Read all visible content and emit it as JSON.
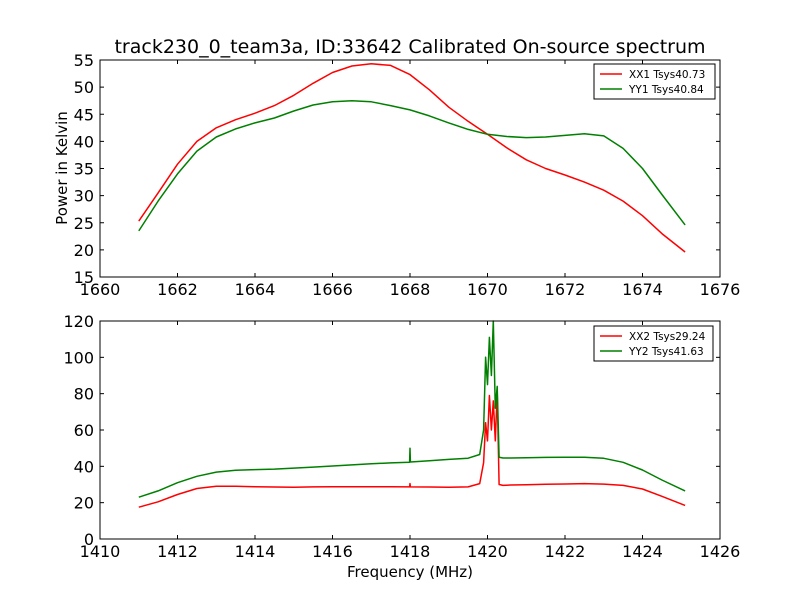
{
  "title": "track230_0_team3a, ID:33642 Calibrated On-source spectrum",
  "xlabel": "Frequency (MHz)",
  "ylabel": "Power in Kelvin",
  "colors": {
    "red": "#ff0000",
    "green": "#008000"
  },
  "chart_data": [
    {
      "type": "line",
      "title": "track230_0_team3a, ID:33642 Calibrated On-source spectrum",
      "ylabel": "Power in Kelvin",
      "xlabel": "",
      "xlim": [
        1660,
        1676
      ],
      "ylim": [
        15,
        55
      ],
      "xticks": [
        1660,
        1662,
        1664,
        1666,
        1668,
        1670,
        1672,
        1674,
        1676
      ],
      "yticks": [
        15,
        20,
        25,
        30,
        35,
        40,
        45,
        50,
        55
      ],
      "legend_position": "top-right",
      "grid": false,
      "series": [
        {
          "name": "XX1 Tsys40.73",
          "color": "#ff0000",
          "x": [
            1661.0,
            1661.5,
            1662.0,
            1662.5,
            1663.0,
            1663.5,
            1664.0,
            1664.5,
            1665.0,
            1665.5,
            1666.0,
            1666.5,
            1667.0,
            1667.5,
            1668.0,
            1668.5,
            1669.0,
            1669.5,
            1670.0,
            1670.5,
            1671.0,
            1671.5,
            1672.0,
            1672.5,
            1673.0,
            1673.5,
            1674.0,
            1674.5,
            1675.1
          ],
          "y": [
            25.3,
            30.5,
            35.8,
            40.0,
            42.5,
            44.0,
            45.2,
            46.6,
            48.5,
            50.7,
            52.7,
            53.9,
            54.3,
            54.0,
            52.3,
            49.5,
            46.3,
            43.7,
            41.3,
            38.8,
            36.6,
            35.0,
            33.8,
            32.5,
            31.0,
            29.0,
            26.3,
            23.0,
            19.6
          ]
        },
        {
          "name": "YY1 Tsys40.84",
          "color": "#008000",
          "x": [
            1661.0,
            1661.5,
            1662.0,
            1662.5,
            1663.0,
            1663.5,
            1664.0,
            1664.5,
            1665.0,
            1665.5,
            1666.0,
            1666.5,
            1667.0,
            1667.5,
            1668.0,
            1668.5,
            1669.0,
            1669.5,
            1670.0,
            1670.5,
            1671.0,
            1671.5,
            1672.0,
            1672.5,
            1673.0,
            1673.5,
            1674.0,
            1674.5,
            1675.1
          ],
          "y": [
            23.5,
            29.0,
            34.0,
            38.2,
            40.8,
            42.3,
            43.4,
            44.3,
            45.6,
            46.7,
            47.3,
            47.5,
            47.3,
            46.6,
            45.8,
            44.7,
            43.4,
            42.2,
            41.3,
            40.9,
            40.7,
            40.8,
            41.1,
            41.4,
            41.0,
            38.7,
            35.0,
            30.2,
            24.6
          ]
        }
      ]
    },
    {
      "type": "line",
      "title": "",
      "xlabel": "Frequency (MHz)",
      "ylabel": "",
      "xlim": [
        1410,
        1426
      ],
      "ylim": [
        0,
        120
      ],
      "xticks": [
        1410,
        1412,
        1414,
        1416,
        1418,
        1420,
        1422,
        1424,
        1426
      ],
      "yticks": [
        0,
        20,
        40,
        60,
        80,
        100,
        120
      ],
      "legend_position": "top-right",
      "grid": false,
      "series": [
        {
          "name": "XX2 Tsys29.24",
          "color": "#ff0000",
          "x": [
            1411.0,
            1411.5,
            1412.0,
            1412.5,
            1413.0,
            1413.5,
            1414.0,
            1414.5,
            1415.0,
            1415.5,
            1416.0,
            1416.5,
            1417.0,
            1417.5,
            1417.99,
            1418.0,
            1418.01,
            1418.5,
            1419.0,
            1419.5,
            1419.8,
            1419.9,
            1419.95,
            1420.0,
            1420.05,
            1420.1,
            1420.15,
            1420.2,
            1420.25,
            1420.3,
            1420.4,
            1420.6,
            1421.0,
            1421.5,
            1422.0,
            1422.5,
            1423.0,
            1423.5,
            1424.0,
            1424.5,
            1425.1
          ],
          "y": [
            17.5,
            20.5,
            24.5,
            27.8,
            29.0,
            29.0,
            28.8,
            28.6,
            28.5,
            28.7,
            28.8,
            28.8,
            28.8,
            28.8,
            28.7,
            30.5,
            28.7,
            28.6,
            28.5,
            28.7,
            30.5,
            42.0,
            64.0,
            54.0,
            79.0,
            60.0,
            76.0,
            54.0,
            81.0,
            30.0,
            29.5,
            29.7,
            29.9,
            30.1,
            30.3,
            30.5,
            30.2,
            29.5,
            27.5,
            23.5,
            18.5
          ]
        },
        {
          "name": "YY2 Tsys41.63",
          "color": "#008000",
          "x": [
            1411.0,
            1411.5,
            1412.0,
            1412.5,
            1413.0,
            1413.5,
            1414.0,
            1414.5,
            1415.0,
            1415.5,
            1416.0,
            1416.5,
            1417.0,
            1417.5,
            1417.99,
            1418.0,
            1418.01,
            1418.5,
            1419.0,
            1419.5,
            1419.8,
            1419.9,
            1419.95,
            1420.0,
            1420.05,
            1420.1,
            1420.15,
            1420.2,
            1420.25,
            1420.3,
            1420.4,
            1420.6,
            1421.0,
            1421.5,
            1422.0,
            1422.5,
            1423.0,
            1423.5,
            1424.0,
            1424.5,
            1425.1
          ],
          "y": [
            23.0,
            26.5,
            31.0,
            34.5,
            36.8,
            37.8,
            38.2,
            38.5,
            39.0,
            39.6,
            40.2,
            40.8,
            41.4,
            41.9,
            42.3,
            50.0,
            42.4,
            43.1,
            43.8,
            44.5,
            46.5,
            60.0,
            100.0,
            85.0,
            111.0,
            90.0,
            120.0,
            72.0,
            84.0,
            45.0,
            44.6,
            44.6,
            44.7,
            44.9,
            45.0,
            45.0,
            44.4,
            42.2,
            38.0,
            32.5,
            26.5
          ]
        }
      ]
    }
  ]
}
